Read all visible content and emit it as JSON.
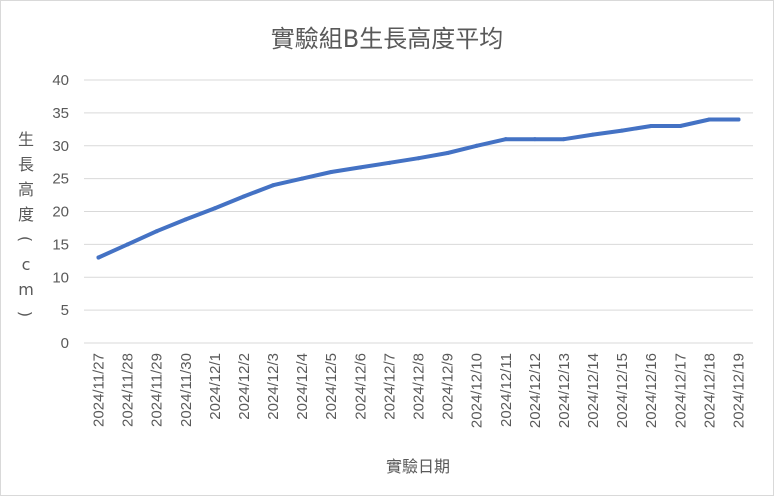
{
  "chart_data": {
    "type": "line",
    "title": "實驗組B生長高度平均",
    "xlabel": "實驗日期",
    "ylabel": "生長高度(cm)",
    "ylim": [
      0,
      40
    ],
    "yticks": [
      0,
      5,
      10,
      15,
      20,
      25,
      30,
      35,
      40
    ],
    "grid": true,
    "legend": "none",
    "categories": [
      "2024/11/27",
      "2024/11/28",
      "2024/11/29",
      "2024/11/30",
      "2024/12/1",
      "2024/12/2",
      "2024/12/3",
      "2024/12/4",
      "2024/12/5",
      "2024/12/6",
      "2024/12/7",
      "2024/12/8",
      "2024/12/9",
      "2024/12/10",
      "2024/12/11",
      "2024/12/12",
      "2024/12/13",
      "2024/12/14",
      "2024/12/15",
      "2024/12/16",
      "2024/12/17",
      "2024/12/18",
      "2024/12/19"
    ],
    "series": [
      {
        "color": "#4472c4",
        "values": [
          13,
          15,
          17,
          18.8,
          20.5,
          22.3,
          24,
          25,
          26,
          26.7,
          27.4,
          28.1,
          28.9,
          30,
          31,
          31,
          31,
          31.7,
          32.3,
          33,
          33,
          34,
          34
        ]
      }
    ]
  }
}
